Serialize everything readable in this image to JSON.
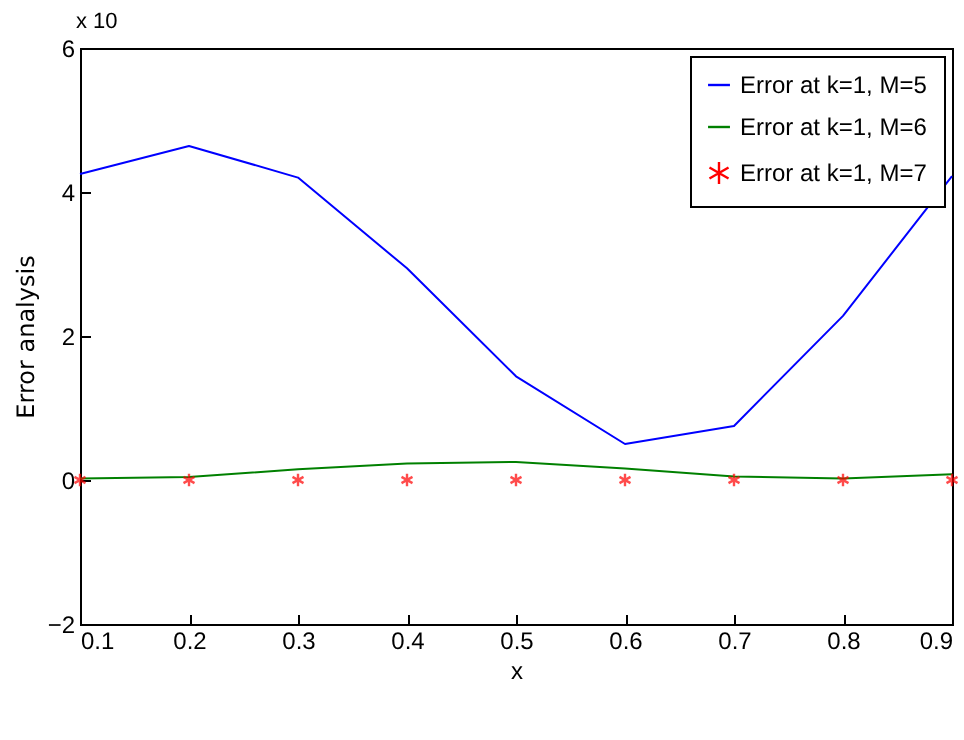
{
  "chart_data": {
    "type": "line",
    "xlabel": "x",
    "ylabel": "Error analysis",
    "annotations": [
      "x 10"
    ],
    "x": [
      0.1,
      0.2,
      0.3,
      0.4,
      0.5,
      0.6,
      0.7,
      0.8,
      0.9
    ],
    "series": [
      {
        "name": "Error at k=1, M=5",
        "color": "#0000ff",
        "values": [
          4.25,
          4.64,
          4.2,
          2.94,
          1.44,
          0.5,
          0.75,
          2.28,
          4.22
        ]
      },
      {
        "name": "Error at k=1, M=6",
        "color": "#008000",
        "values": [
          0.02,
          0.04,
          0.15,
          0.23,
          0.25,
          0.16,
          0.05,
          0.02,
          0.08
        ]
      },
      {
        "name": "Error at k=1, M=7",
        "color": "#ff0000",
        "type": "scatter",
        "marker": "cross",
        "values": [
          0,
          0,
          0,
          0,
          0,
          0,
          0,
          0,
          0
        ]
      }
    ],
    "xlim": [
      0.1,
      0.9
    ],
    "xticks": [
      0.1,
      0.2,
      0.3,
      0.4,
      0.5,
      0.6,
      0.7,
      0.8,
      0.9
    ],
    "ylim": [
      -2,
      6
    ],
    "yticks": [
      -2,
      0,
      2,
      4,
      6
    ],
    "grid": false,
    "legend": "top right"
  }
}
